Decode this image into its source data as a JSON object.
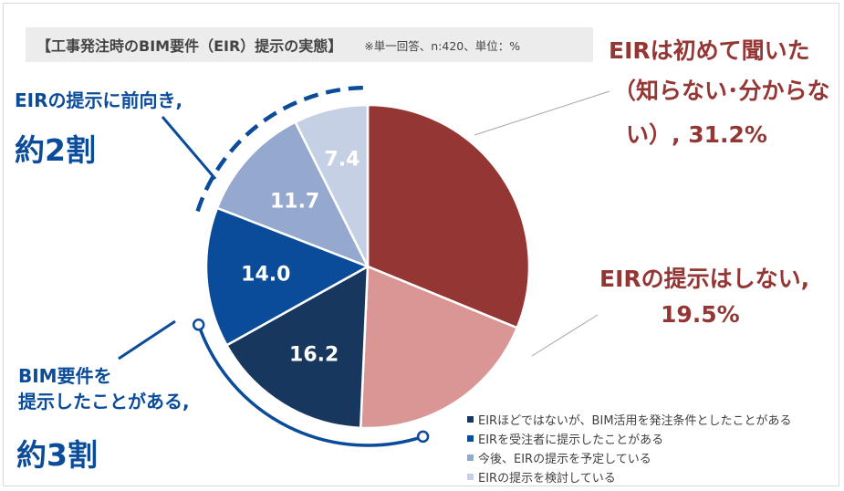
{
  "title": "【工事発注時のBIM要件（EIR）提示の実態】",
  "note": "※単一回答、n:420、単位：%",
  "chart_data": {
    "type": "pie",
    "title": "【工事発注時のBIM要件（EIR）提示の実態】",
    "unit": "%",
    "slices": [
      {
        "label": "EIRは初めて聞いた（知らない･分からない）",
        "value": 31.2,
        "color": "#943634"
      },
      {
        "label": "EIRの提示はしない",
        "value": 19.5,
        "color": "#d99694"
      },
      {
        "label": "EIRほどではないが、BIM活用を発注条件としたことがある",
        "value": 16.2,
        "color": "#17375e"
      },
      {
        "label": "EIRを受注者に提示したことがある",
        "value": 14.0,
        "color": "#0b4c9a"
      },
      {
        "label": "今後、EIRの提示を予定している",
        "value": 11.7,
        "color": "#95a8cd"
      },
      {
        "label": "EIRの提示を検討している",
        "value": 7.4,
        "color": "#c6d0e4"
      }
    ],
    "data_labels": [
      "16.2",
      "14.0",
      "11.7",
      "7.4"
    ]
  },
  "callouts": {
    "red1_line1": "EIRは初めて聞いた",
    "red1_line2": "（知らない･分からな",
    "red1_line3": "い）, 31.2%",
    "red2_line1": "EIRの提示はしない,",
    "red2_line2": "19.5%",
    "blue_top_line1": "EIRの提示に前向き,",
    "blue_top_line2": "約2割",
    "blue_bottom_line1": "BIM要件を",
    "blue_bottom_line2": "提示したことがある,",
    "blue_bottom_line3": "約3割"
  },
  "legend": [
    {
      "label": "EIRほどではないが、BIM活用を発注条件としたことがある",
      "color": "#17375e"
    },
    {
      "label": "EIRを受注者に提示したことがある",
      "color": "#0b4c9a"
    },
    {
      "label": "今後、EIRの提示を予定している",
      "color": "#95a8cd"
    },
    {
      "label": "EIRの提示を検討している",
      "color": "#c6d0e4"
    }
  ]
}
